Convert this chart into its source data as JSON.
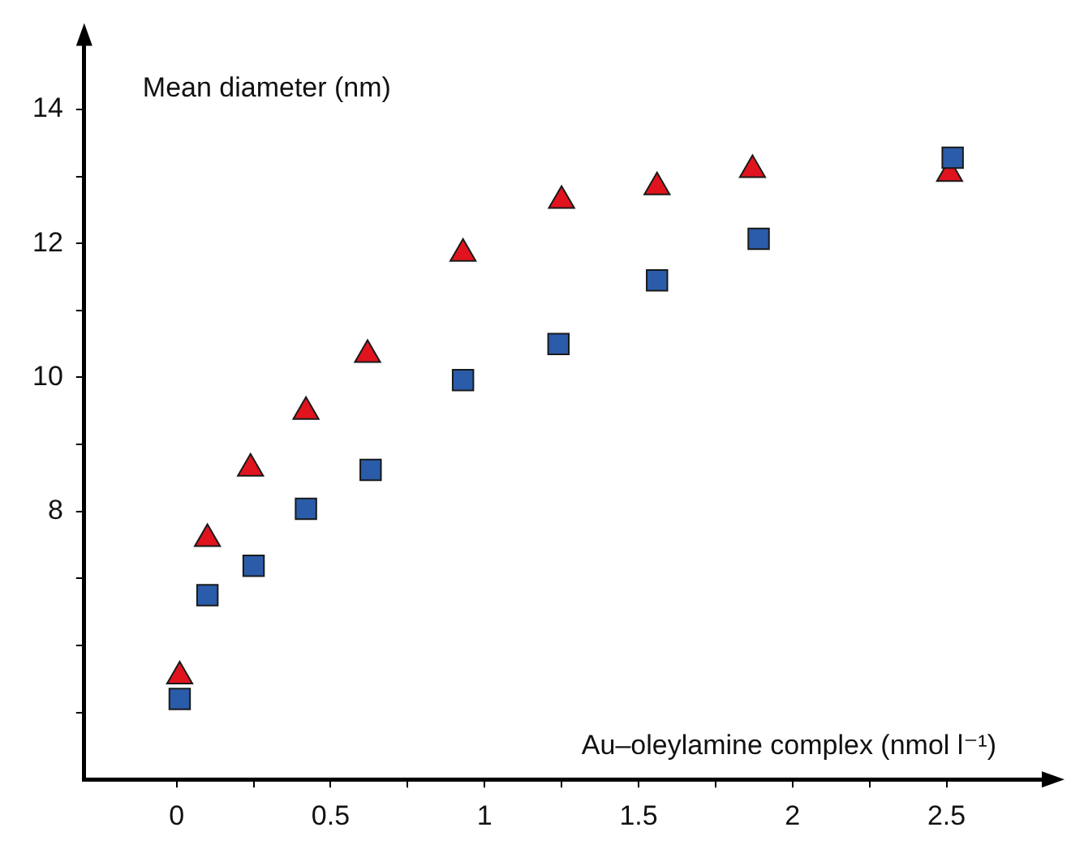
{
  "chart_data": {
    "type": "scatter",
    "xlabel": "Au–oleylamine complex (nmol l⁻¹)",
    "ylabel": "Mean diameter (nm)",
    "xlim": [
      -0.3,
      2.82
    ],
    "ylim": [
      4,
      15
    ],
    "xticks": [
      0,
      {
        "value": 0.25,
        "label": null
      },
      0.5,
      {
        "value": 0.75,
        "label": null
      },
      1,
      {
        "value": 1.25,
        "label": null
      },
      1.5,
      {
        "value": 1.75,
        "label": null
      },
      2,
      {
        "value": 2.25,
        "label": null
      },
      2.5
    ],
    "yticks": [
      {
        "value": 5,
        "label": null
      },
      {
        "value": 6,
        "label": null
      },
      {
        "value": 7,
        "label": null
      },
      8,
      {
        "value": 9,
        "label": null
      },
      10,
      {
        "value": 11,
        "label": null
      },
      12,
      {
        "value": 13,
        "label": null
      },
      14
    ],
    "grid": false,
    "legend": false,
    "series": [
      {
        "color": "#2a5caa",
        "marker": "square",
        "x": [
          0.01,
          0.1,
          0.25,
          0.42,
          0.63,
          0.93,
          1.24,
          1.56,
          1.89,
          2.52
        ],
        "values": [
          5.2,
          6.75,
          7.19,
          8.04,
          8.62,
          9.96,
          10.5,
          11.45,
          12.07,
          13.28
        ]
      },
      {
        "color": "#e0141e",
        "marker": "triangle",
        "x": [
          0.01,
          0.1,
          0.24,
          0.42,
          0.62,
          0.93,
          1.25,
          1.56,
          1.87,
          2.51
        ],
        "values": [
          5.54,
          7.59,
          8.64,
          9.49,
          10.34,
          11.85,
          12.64,
          12.84,
          13.1,
          13.04
        ]
      }
    ]
  }
}
